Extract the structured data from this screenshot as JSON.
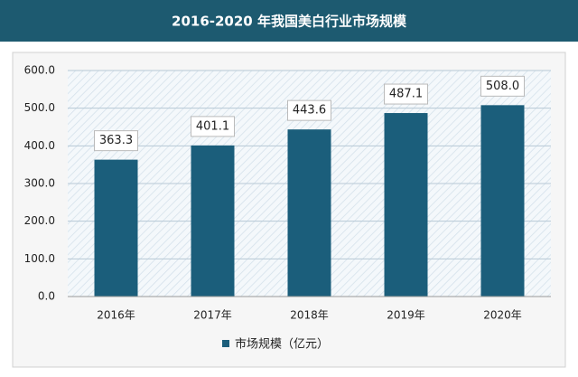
{
  "chart_data": {
    "type": "bar",
    "title": "2016-2020 年我国美白行业市场规模",
    "categories": [
      "2016年",
      "2017年",
      "2018年",
      "2019年",
      "2020年"
    ],
    "series": [
      {
        "name": "市场规模（亿元）",
        "color": "#1b5e7b",
        "values": [
          363.3,
          401.1,
          443.6,
          487.1,
          508.0
        ],
        "value_labels": [
          "363.3",
          "401.1",
          "443.6",
          "487.1",
          "508.0"
        ]
      }
    ],
    "ylim": [
      0,
      600
    ],
    "yticks": [
      {
        "value": 0,
        "label": "0.0"
      },
      {
        "value": 100,
        "label": "100.0"
      },
      {
        "value": 200,
        "label": "200.0"
      },
      {
        "value": 300,
        "label": "300.0"
      },
      {
        "value": 400,
        "label": "400.0"
      },
      {
        "value": 500,
        "label": "500.0"
      },
      {
        "value": 600,
        "label": "600.0"
      }
    ],
    "grid": true
  }
}
